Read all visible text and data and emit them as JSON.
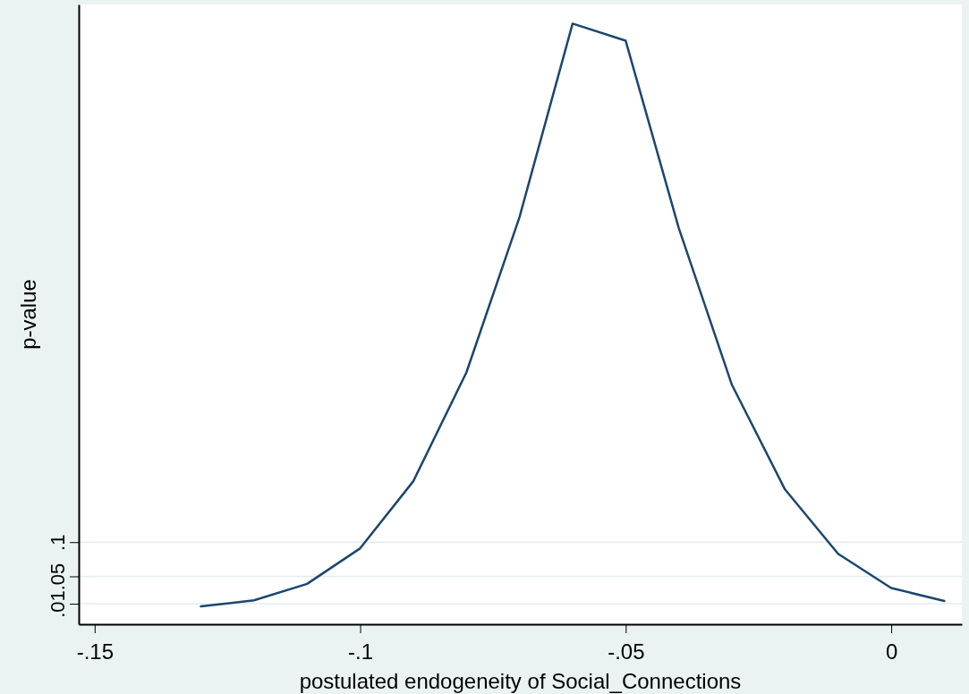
{
  "chart_data": {
    "type": "line",
    "xlabel": "postulated endogeneity of Social_Connections",
    "ylabel": "p-value",
    "x": [
      -0.13,
      -0.12,
      -0.11,
      -0.1,
      -0.09,
      -0.08,
      -0.07,
      -0.06,
      -0.05,
      -0.04,
      -0.03,
      -0.02,
      -0.01,
      0,
      0.01
    ],
    "series": [
      {
        "color": "#1a476f",
        "values": [
          0.006,
          0.015,
          0.039,
          0.091,
          0.189,
          0.348,
          0.575,
          0.858,
          0.833,
          0.559,
          0.33,
          0.177,
          0.083,
          0.033,
          0.014
        ]
      }
    ],
    "xlim": [
      -0.153,
      0.0133
    ],
    "ylim": [
      -0.02,
      0.886
    ],
    "xticks": [
      {
        "value": -0.15,
        "label": "-.15"
      },
      {
        "value": -0.1,
        "label": "-.1"
      },
      {
        "value": -0.05,
        "label": "-.05"
      },
      0
    ],
    "yticks": [
      {
        "value": 0.01,
        "label": ".01"
      },
      {
        "value": 0.05,
        "label": ".05"
      },
      {
        "value": 0.1,
        "label": ".1"
      }
    ],
    "grid": "y",
    "marker": "none",
    "line_style": "solid"
  }
}
